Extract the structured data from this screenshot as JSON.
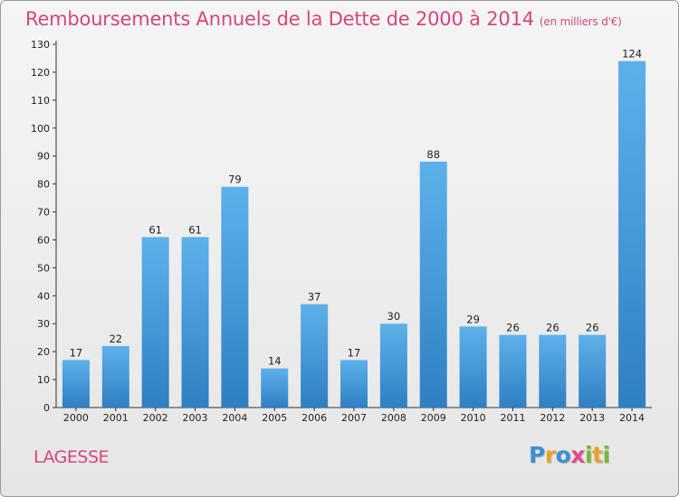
{
  "chart_data": {
    "type": "bar",
    "title": "Remboursements Annuels de la Dette de 2000 à 2014",
    "unit": "(en milliers d'€)",
    "categories": [
      "2000",
      "2001",
      "2002",
      "2003",
      "2004",
      "2005",
      "2006",
      "2007",
      "2008",
      "2009",
      "2010",
      "2011",
      "2012",
      "2013",
      "2014"
    ],
    "values": [
      17,
      22,
      61,
      61,
      79,
      14,
      37,
      17,
      30,
      88,
      29,
      26,
      26,
      26,
      124
    ],
    "ylim": [
      0,
      130
    ],
    "yticks": [
      0,
      10,
      20,
      30,
      40,
      50,
      60,
      70,
      80,
      90,
      100,
      110,
      120,
      130
    ],
    "grid": false,
    "bar_color": "#4a9fe0"
  },
  "commune": "LAGESSE",
  "logo": {
    "text": "Proxiti",
    "letters": [
      {
        "ch": "P",
        "color": "#3d8fd6"
      },
      {
        "ch": "r",
        "color": "#e9a227"
      },
      {
        "ch": "o",
        "color": "#3d8fd6"
      },
      {
        "ch": "x",
        "color": "#e24a8b"
      },
      {
        "ch": "i",
        "color": "#78b83a"
      },
      {
        "ch": "t",
        "color": "#e9a227"
      },
      {
        "ch": "i",
        "color": "#78b83a"
      }
    ]
  }
}
